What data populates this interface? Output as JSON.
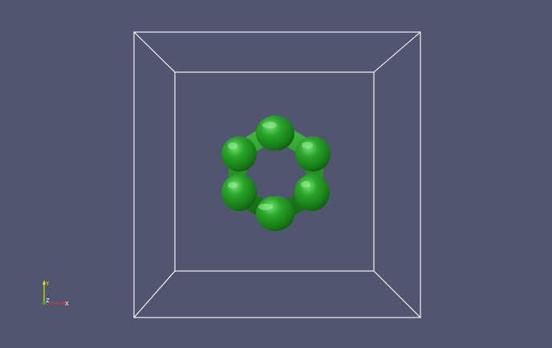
{
  "view": {
    "background": "#525570",
    "bounding_box_color": "#ffffff",
    "molecule_color": "#1f8f1f",
    "molecule_highlight": "#5cd45c",
    "molecule_shadow": "#0b4a0b"
  },
  "orientation_axes": {
    "y_label": "Y",
    "z_label": "Z",
    "x_label": "X",
    "y_color": "#e0e000",
    "z_color": "#ffffff",
    "x_color": "#e03030"
  }
}
